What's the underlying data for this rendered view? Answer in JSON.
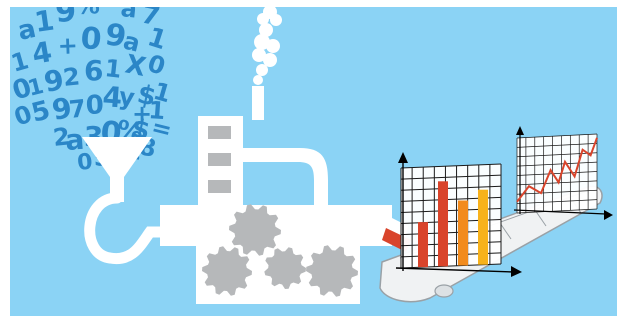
{
  "illustration": {
    "colors": {
      "sky": "#8BD3F5",
      "white": "#FFFFFF",
      "gear": "#B6B8BA",
      "window": "#B6B8BA",
      "glyph": "#2B86C7",
      "grid": "#1A1A1A",
      "axis": "#000000",
      "belt": "#F0F2F3",
      "bar_red": "#D9442B",
      "bar_orange": "#F28B1D",
      "bar_amber": "#F7B21C",
      "trend_line": "#D9442B"
    },
    "glyph_cloud": [
      {
        "text": "a"
      },
      {
        "text": "1"
      },
      {
        "text": "9"
      },
      {
        "text": "%"
      },
      {
        "text": "="
      },
      {
        "text": "a"
      },
      {
        "text": "7"
      },
      {
        "text": "1"
      },
      {
        "text": "4"
      },
      {
        "text": "+"
      },
      {
        "text": "0"
      },
      {
        "text": "9"
      },
      {
        "text": "a"
      },
      {
        "text": "1"
      },
      {
        "text": "0"
      },
      {
        "text": "1"
      },
      {
        "text": "9"
      },
      {
        "text": "2"
      },
      {
        "text": "6"
      },
      {
        "text": "1"
      },
      {
        "text": "X"
      },
      {
        "text": "0"
      },
      {
        "text": "0"
      },
      {
        "text": "5"
      },
      {
        "text": "9"
      },
      {
        "text": "7"
      },
      {
        "text": "0"
      },
      {
        "text": "4"
      },
      {
        "text": "y"
      },
      {
        "text": "$"
      },
      {
        "text": "1"
      },
      {
        "text": "2"
      },
      {
        "text": "a"
      },
      {
        "text": "3"
      },
      {
        "text": "0"
      },
      {
        "text": "%"
      },
      {
        "text": "$"
      },
      {
        "text": "="
      },
      {
        "text": "+"
      },
      {
        "text": "1"
      },
      {
        "text": "0"
      },
      {
        "text": "5"
      },
      {
        "text": "2"
      },
      {
        "text": "1"
      },
      {
        "text": "8"
      }
    ],
    "factory": {
      "icons": [
        "funnel-icon",
        "pipe-icon",
        "chimney-icon",
        "smoke-icon",
        "gear-icon",
        "window-icon"
      ]
    },
    "bar_panel": {
      "bar_values": [
        0.45,
        0.85,
        0.65,
        0.75
      ]
    },
    "trend_panel": {
      "line_points": [
        [
          0,
          0.15
        ],
        [
          0.15,
          0.35
        ],
        [
          0.3,
          0.25
        ],
        [
          0.42,
          0.55
        ],
        [
          0.52,
          0.38
        ],
        [
          0.6,
          0.65
        ],
        [
          0.72,
          0.45
        ],
        [
          0.82,
          0.8
        ],
        [
          0.92,
          0.72
        ],
        [
          1,
          0.95
        ]
      ]
    }
  }
}
